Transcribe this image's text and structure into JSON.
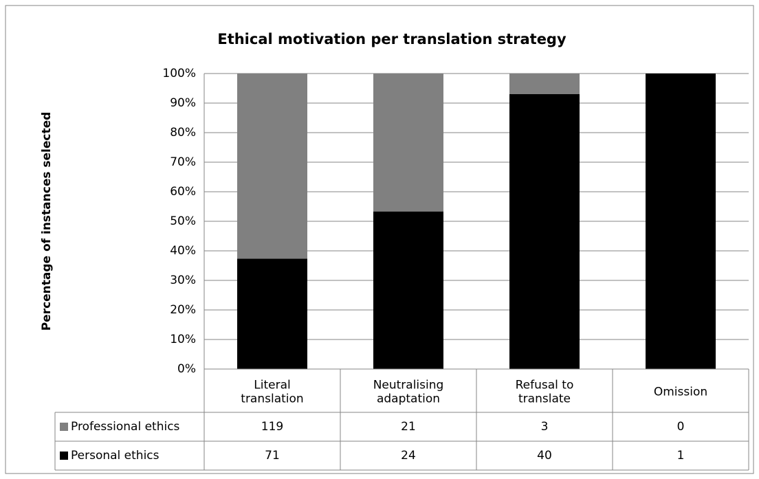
{
  "chart_data": {
    "type": "bar",
    "stacking": "percent",
    "title": "Ethical motivation per translation strategy",
    "y_label": "Percentage of instances selected",
    "categories": [
      "Literal\ntranslation",
      "Neutralising\nadaptation",
      "Refusal to\ntranslate",
      "Omission"
    ],
    "series": [
      {
        "name": "Professional ethics",
        "color": "#808080",
        "values": [
          119,
          21,
          3,
          0
        ]
      },
      {
        "name": "Personal ethics",
        "color": "#000000",
        "values": [
          71,
          24,
          40,
          1
        ]
      }
    ],
    "ylim": [
      0,
      100
    ],
    "yticks": [
      {
        "value": 0,
        "label": "0%"
      },
      {
        "value": 10,
        "label": "10%"
      },
      {
        "value": 20,
        "label": "20%"
      },
      {
        "value": 30,
        "label": "30%"
      },
      {
        "value": 40,
        "label": "40%"
      },
      {
        "value": 50,
        "label": "50%"
      },
      {
        "value": 60,
        "label": "60%"
      },
      {
        "value": 70,
        "label": "70%"
      },
      {
        "value": 80,
        "label": "80%"
      },
      {
        "value": 90,
        "label": "90%"
      },
      {
        "value": 100,
        "label": "100%"
      }
    ],
    "grid": true,
    "data_table": true
  }
}
